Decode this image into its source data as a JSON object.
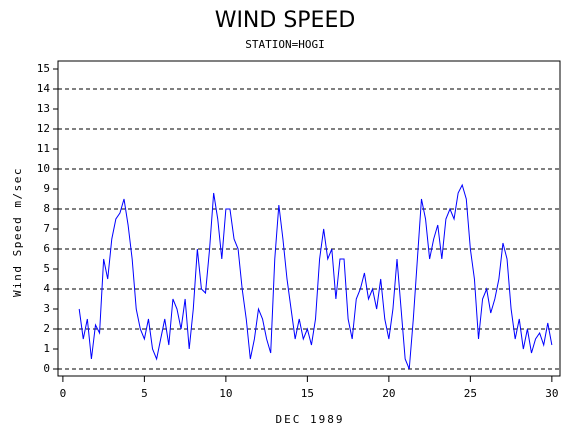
{
  "chart_data": {
    "type": "line",
    "title": "WIND SPEED",
    "subtitle": "STATION=HOGI",
    "x_label": "DEC 1989",
    "y_label": "Wind Speed m/sec",
    "xlim": [
      -0.3,
      30.5
    ],
    "xticks": [
      0,
      5,
      10,
      15,
      20,
      25,
      30
    ],
    "ylim": [
      -0.35,
      15.4
    ],
    "yticks": [
      0,
      1,
      2,
      3,
      4,
      5,
      6,
      7,
      8,
      9,
      10,
      11,
      12,
      13,
      14,
      15
    ],
    "gridlines": [
      0,
      2,
      4,
      6,
      8,
      10,
      12,
      14
    ],
    "series": [
      {
        "name": "Wind Speed",
        "color": "#0000ff",
        "x": [
          1,
          1.25,
          1.5,
          1.75,
          2,
          2.25,
          2.5,
          2.75,
          3,
          3.25,
          3.5,
          3.75,
          4,
          4.25,
          4.5,
          4.75,
          5,
          5.25,
          5.5,
          5.75,
          6,
          6.25,
          6.5,
          6.75,
          7,
          7.25,
          7.5,
          7.75,
          8,
          8.25,
          8.5,
          8.75,
          9,
          9.25,
          9.5,
          9.75,
          10,
          10.25,
          10.5,
          10.75,
          11,
          11.25,
          11.5,
          11.75,
          12,
          12.25,
          12.5,
          12.75,
          13,
          13.25,
          13.5,
          13.75,
          14,
          14.25,
          14.5,
          14.75,
          15,
          15.25,
          15.5,
          15.75,
          16,
          16.25,
          16.5,
          16.75,
          17,
          17.25,
          17.5,
          17.75,
          18,
          18.25,
          18.5,
          18.75,
          19,
          19.25,
          19.5,
          19.75,
          20,
          20.25,
          20.5,
          20.75,
          21,
          21.25,
          21.5,
          21.75,
          22,
          22.25,
          22.5,
          22.75,
          23,
          23.25,
          23.5,
          23.75,
          24,
          24.25,
          24.5,
          24.75,
          25,
          25.25,
          25.5,
          25.75,
          26,
          26.25,
          26.5,
          26.75,
          27,
          27.25,
          27.5,
          27.75,
          28,
          28.25,
          28.5,
          28.75,
          29,
          29.25,
          29.5,
          29.75,
          30
        ],
        "values": [
          3.0,
          1.5,
          2.5,
          0.5,
          2.2,
          1.8,
          5.5,
          4.5,
          6.5,
          7.5,
          7.8,
          8.5,
          7.2,
          5.5,
          3.0,
          2.0,
          1.5,
          2.5,
          1.0,
          0.5,
          1.5,
          2.5,
          1.2,
          3.5,
          3.0,
          2.0,
          3.5,
          1.0,
          3.0,
          6.0,
          4.0,
          3.8,
          6.0,
          8.8,
          7.5,
          5.5,
          8.0,
          8.0,
          6.5,
          6.0,
          4.0,
          2.5,
          0.5,
          1.5,
          3.0,
          2.5,
          1.5,
          0.8,
          5.5,
          8.2,
          6.5,
          4.5,
          3.0,
          1.5,
          2.5,
          1.5,
          2.0,
          1.2,
          2.5,
          5.5,
          7.0,
          5.5,
          6.0,
          3.5,
          5.5,
          5.5,
          2.5,
          1.5,
          3.5,
          4.0,
          4.8,
          3.5,
          4.0,
          3.0,
          4.5,
          2.5,
          1.5,
          3.0,
          5.5,
          3.0,
          0.5,
          0.0,
          2.5,
          5.5,
          8.5,
          7.5,
          5.5,
          6.5,
          7.2,
          5.5,
          7.5,
          8.0,
          7.5,
          8.8,
          9.2,
          8.5,
          6.0,
          4.5,
          1.5,
          3.5,
          4.0,
          2.8,
          3.5,
          4.5,
          6.3,
          5.5,
          3.0,
          1.5,
          2.5,
          1.0,
          2.0,
          0.8,
          1.5,
          1.8,
          1.2,
          2.3,
          1.2
        ]
      }
    ]
  }
}
